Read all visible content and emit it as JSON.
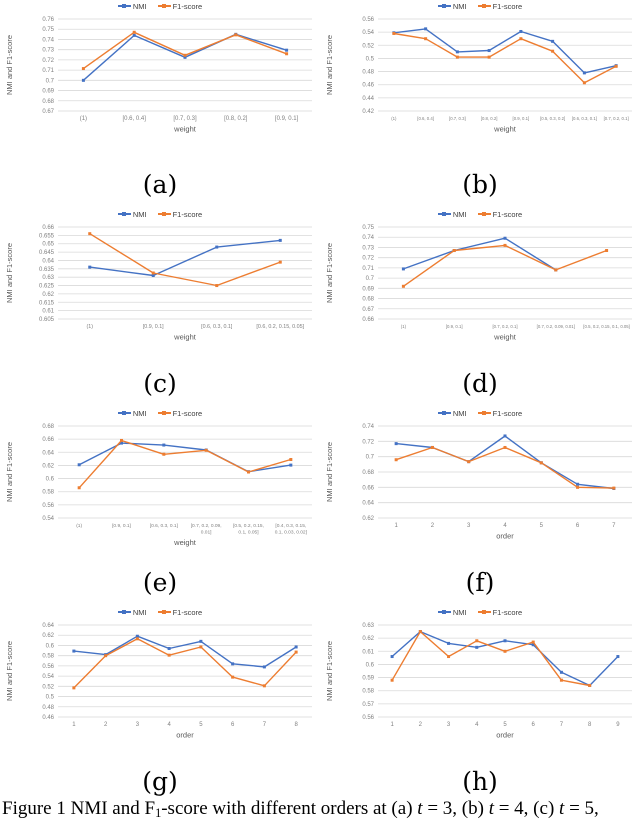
{
  "figure_caption": {
    "segments": [
      {
        "text": "Figure 1 NMI and F"
      },
      {
        "text": "1",
        "sub": true
      },
      {
        "text": "-score with different orders at (a) "
      },
      {
        "text": "t",
        "italic": true
      },
      {
        "text": " = 3, (b) "
      },
      {
        "text": "t",
        "italic": true
      },
      {
        "text": " = 4, (c) "
      },
      {
        "text": "t",
        "italic": true
      },
      {
        "text": " = 5,"
      }
    ]
  },
  "colors": {
    "nmi": "#4472C4",
    "f1": "#ED7D31",
    "gridline": "#D9D9D9",
    "tick_text": "#808080",
    "axis_title_text": "#595959"
  },
  "chart_data": [
    {
      "id": "a",
      "type": "line",
      "panel_label": "(a)",
      "xlabel": "weight",
      "ylabel": "NMI and F1-score",
      "ymin": 0.67,
      "ymax": 0.76,
      "ystep": 0.01,
      "categories": [
        "(1)",
        "[0.6, 0.4]",
        "[0.7, 0.3]",
        "[0.8, 0.2]",
        "[0.9, 0.1]"
      ],
      "series": [
        {
          "name": "NMI",
          "color": "#4472C4",
          "values": [
            0.7,
            0.744,
            0.7225,
            0.745,
            0.7295
          ]
        },
        {
          "name": "F1-score",
          "color": "#ED7D31",
          "values": [
            0.7115,
            0.747,
            0.7245,
            0.7445,
            0.726
          ]
        }
      ]
    },
    {
      "id": "b",
      "type": "line",
      "panel_label": "(b)",
      "xlabel": "weight",
      "ylabel": "NMI and F1-score",
      "ymin": 0.42,
      "ymax": 0.56,
      "ystep": 0.02,
      "categories": [
        "(1)",
        "[0.6, 0.4]",
        "[0.7, 0.3]",
        "[0.8, 0.2]",
        "[0.9, 0.1]",
        "[0.5, 0.3, 0.2]",
        "[0.6, 0.3, 0.1]",
        "[0.7, 0.2, 0.1]"
      ],
      "series": [
        {
          "name": "NMI",
          "color": "#4472C4",
          "values": [
            0.539,
            0.545,
            0.51,
            0.512,
            0.541,
            0.526,
            0.478,
            0.489
          ]
        },
        {
          "name": "F1-score",
          "color": "#ED7D31",
          "values": [
            0.538,
            0.53,
            0.502,
            0.502,
            0.53,
            0.511,
            0.463,
            0.488
          ]
        }
      ]
    },
    {
      "id": "c",
      "type": "line",
      "panel_label": "(c)",
      "xlabel": "weight",
      "ylabel": "NMI and F1-score",
      "ymin": 0.605,
      "ymax": 0.66,
      "ystep": 0.005,
      "categories": [
        "(1)",
        "[0.9, 0.1]",
        "[0.6, 0.3, 0.1]",
        "[0.6, 0.2, 0.15, 0.05]"
      ],
      "series": [
        {
          "name": "NMI",
          "color": "#4472C4",
          "values": [
            0.636,
            0.631,
            0.648,
            0.652
          ]
        },
        {
          "name": "F1-score",
          "color": "#ED7D31",
          "values": [
            0.656,
            0.6325,
            0.625,
            0.639
          ]
        }
      ]
    },
    {
      "id": "d",
      "type": "line",
      "panel_label": "(d)",
      "xlabel": "weight",
      "ylabel": "NMI and F1-score",
      "ymin": 0.66,
      "ymax": 0.75,
      "ystep": 0.01,
      "categories": [
        "(1)",
        "[0.9, 0.1]",
        "[0.7, 0.2, 0.1]",
        "[0.7, 0.2, 0.09, 0.01]",
        "[0.5, 0.2, 0.15, 0.1, 0.05]"
      ],
      "series": [
        {
          "name": "NMI",
          "color": "#4472C4",
          "values": [
            0.709,
            0.727,
            0.739,
            0.708,
            null
          ]
        },
        {
          "name": "F1-score",
          "color": "#ED7D31",
          "values": [
            0.692,
            0.727,
            0.732,
            0.708,
            0.727
          ]
        }
      ]
    },
    {
      "id": "e",
      "type": "line",
      "panel_label": "(e)",
      "xlabel": "weight",
      "ylabel": "NMI and F1-score",
      "ymin": 0.54,
      "ymax": 0.68,
      "ystep": 0.02,
      "categories": [
        "(1)",
        "[0.9, 0.1]",
        "[0.6, 0.3, 0.1]",
        [
          "[0.7, 0.2, 0.09,",
          "0.01]"
        ],
        [
          "[0.5, 0.2, 0.15,",
          "0.1, 0.05]"
        ],
        [
          "[0.4, 0.3, 0.15,",
          "0.1, 0.03, 0.02]"
        ]
      ],
      "series": [
        {
          "name": "NMI",
          "color": "#4472C4",
          "values": [
            0.621,
            0.654,
            0.651,
            0.6435,
            0.6105,
            0.6205
          ]
        },
        {
          "name": "F1-score",
          "color": "#ED7D31",
          "values": [
            0.586,
            0.658,
            0.637,
            0.643,
            0.61,
            0.629
          ]
        }
      ]
    },
    {
      "id": "f",
      "type": "line",
      "panel_label": "(f)",
      "xlabel": "order",
      "ylabel": "NMI and F1-score",
      "ymin": 0.62,
      "ymax": 0.74,
      "ystep": 0.02,
      "categories": [
        "1",
        "2",
        "3",
        "4",
        "5",
        "6",
        "7"
      ],
      "series": [
        {
          "name": "NMI",
          "color": "#4472C4",
          "values": [
            0.717,
            0.712,
            0.6935,
            0.727,
            0.692,
            0.664,
            0.6585
          ]
        },
        {
          "name": "F1-score",
          "color": "#ED7D31",
          "values": [
            0.696,
            0.712,
            0.6935,
            0.712,
            0.692,
            0.66,
            0.659
          ]
        }
      ]
    },
    {
      "id": "g",
      "type": "line",
      "panel_label": "(g)",
      "xlabel": "order",
      "ylabel": "NMI and F1-score",
      "ymin": 0.46,
      "ymax": 0.64,
      "ystep": 0.02,
      "categories": [
        "1",
        "2",
        "3",
        "4",
        "5",
        "6",
        "7",
        "8"
      ],
      "series": [
        {
          "name": "NMI",
          "color": "#4472C4",
          "values": [
            0.589,
            0.582,
            0.618,
            0.594,
            0.608,
            0.564,
            0.558,
            0.597
          ]
        },
        {
          "name": "F1-score",
          "color": "#ED7D31",
          "values": [
            0.517,
            0.58,
            0.613,
            0.581,
            0.597,
            0.538,
            0.521,
            0.587
          ]
        }
      ]
    },
    {
      "id": "h",
      "type": "line",
      "panel_label": "(h)",
      "xlabel": "order",
      "ylabel": "NMI and F1-score",
      "ymin": 0.56,
      "ymax": 0.63,
      "ystep": 0.01,
      "categories": [
        "1",
        "2",
        "3",
        "4",
        "5",
        "6",
        "7",
        "8",
        "9"
      ],
      "series": [
        {
          "name": "NMI",
          "color": "#4472C4",
          "values": [
            0.606,
            0.625,
            0.616,
            0.613,
            0.618,
            0.615,
            0.594,
            0.584,
            0.606
          ]
        },
        {
          "name": "F1-score",
          "color": "#ED7D31",
          "values": [
            0.588,
            0.625,
            0.606,
            0.618,
            0.61,
            0.617,
            0.588,
            0.584,
            null
          ]
        }
      ]
    }
  ]
}
